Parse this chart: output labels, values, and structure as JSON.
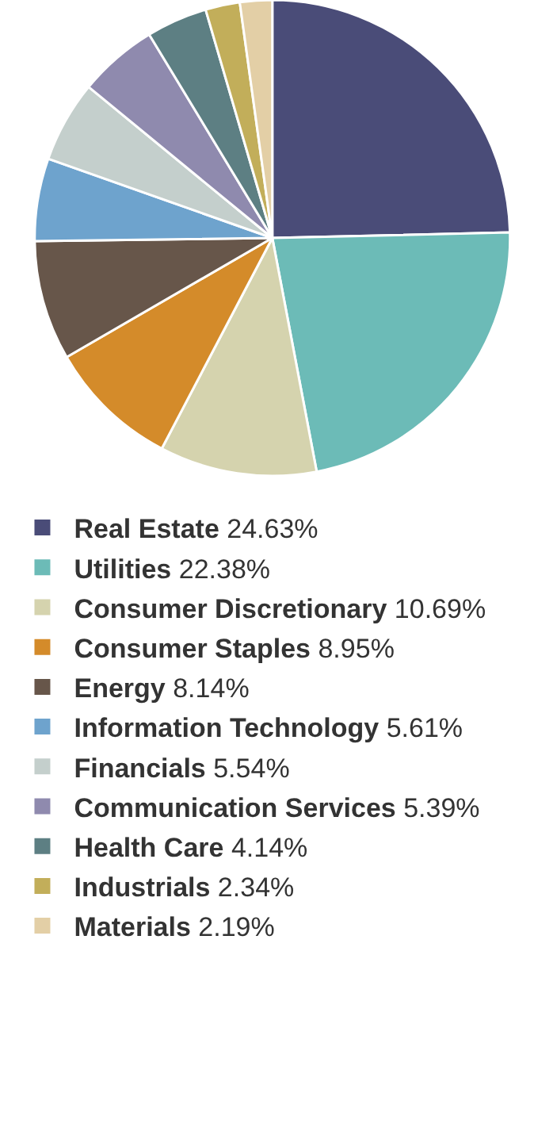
{
  "chart_data": {
    "type": "pie",
    "categories": [
      "Real Estate",
      "Utilities",
      "Consumer Discretionary",
      "Consumer Staples",
      "Energy",
      "Information Technology",
      "Financials",
      "Communication Services",
      "Health Care",
      "Industrials",
      "Materials"
    ],
    "values": [
      24.63,
      22.38,
      10.69,
      8.95,
      8.14,
      5.61,
      5.54,
      5.39,
      4.14,
      2.34,
      2.19
    ],
    "value_labels": [
      "24.63%",
      "22.38%",
      "10.69%",
      "8.95%",
      "8.14%",
      "5.61%",
      "5.54%",
      "5.39%",
      "4.14%",
      "2.34%",
      "2.19%"
    ],
    "colors": [
      "#4a4c78",
      "#6cbbb7",
      "#d5d3ae",
      "#d48b2a",
      "#67564a",
      "#6ea3cd",
      "#c4cfcc",
      "#8f8aae",
      "#5d7f83",
      "#c2ae5a",
      "#e3cfa6"
    ],
    "legend": "bottom"
  }
}
